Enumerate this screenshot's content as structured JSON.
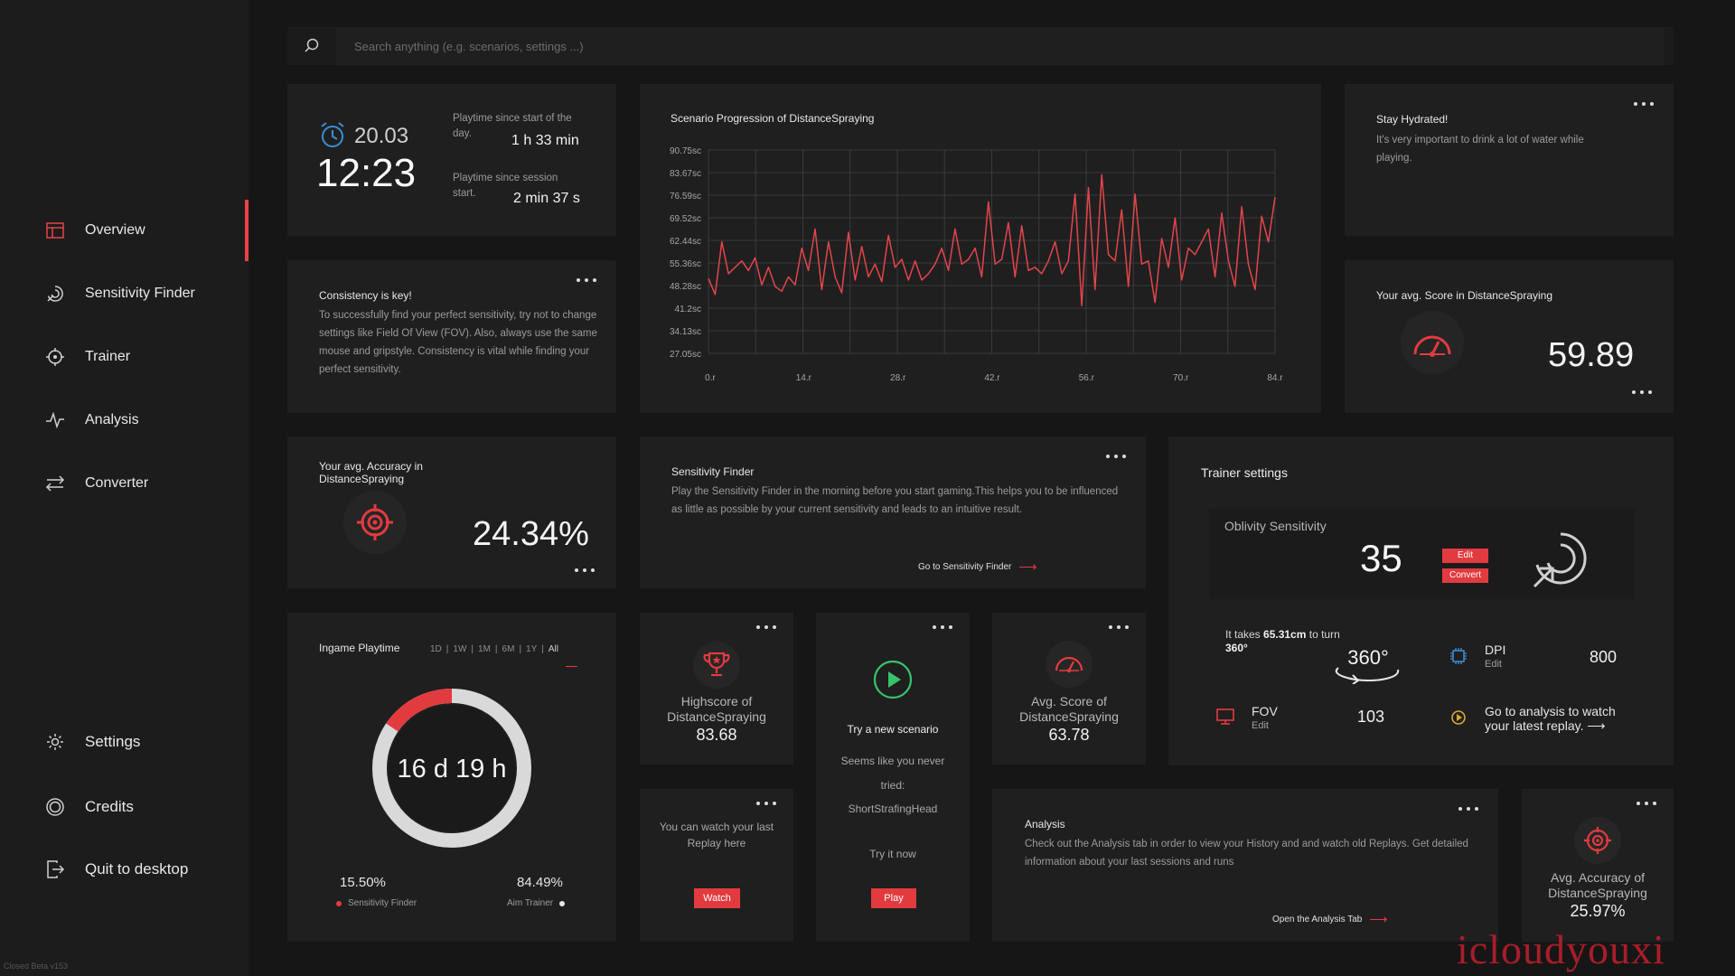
{
  "search": {
    "placeholder": "Search anything (e.g. scenarios, settings ...)"
  },
  "nav": {
    "overview": "Overview",
    "sensitivity_finder": "Sensitivity Finder",
    "trainer": "Trainer",
    "analysis": "Analysis",
    "converter": "Converter",
    "settings": "Settings",
    "credits": "Credits",
    "quit": "Quit to desktop"
  },
  "version": "Closed Beta v153",
  "clock": {
    "date": "20.03",
    "time": "12:23",
    "day_label": "Playtime since start of the day.",
    "day_value": "1 h 33 min",
    "session_label": "Playtime since session start.",
    "session_value": "2 min 37 s"
  },
  "progression": {
    "title": "Scenario Progression of DistanceSpraying"
  },
  "chart_data": {
    "type": "line",
    "title": "Scenario Progression of DistanceSpraying",
    "xlabel": "",
    "ylabel": "",
    "x_tick_labels": [
      "0.r",
      "14.r",
      "28.r",
      "42.r",
      "56.r",
      "70.r",
      "84.r"
    ],
    "y_tick_labels": [
      "90.75sc",
      "83.67sc",
      "76.59sc",
      "69.52sc",
      "62.44sc",
      "55.36sc",
      "48.28sc",
      "41.2sc",
      "34.13sc",
      "27.05sc"
    ],
    "ylim": [
      27.05,
      90.75
    ],
    "xlim": [
      0,
      84
    ],
    "grid": true,
    "color": "#e2454b",
    "series": [
      {
        "values": [
          50.5,
          45.5,
          62,
          52,
          54,
          56,
          53,
          57,
          48.5,
          54,
          48,
          46.5,
          51,
          48.5,
          60,
          53,
          66,
          47,
          62,
          51,
          46,
          65,
          50,
          60.5,
          51,
          55,
          49.5,
          64,
          54,
          56.5,
          50,
          56,
          50,
          52,
          55,
          60,
          53,
          66,
          55,
          56.5,
          60,
          51,
          74.5,
          55,
          56.5,
          68,
          51,
          67,
          53,
          54,
          52,
          56,
          62,
          52,
          56,
          77,
          42,
          79,
          47,
          83,
          58,
          56,
          72,
          48,
          77,
          55,
          56,
          43,
          63,
          54,
          69.5,
          50,
          60,
          58,
          62,
          66,
          51,
          71,
          56,
          48,
          73,
          55,
          47,
          70,
          62,
          76
        ]
      }
    ]
  },
  "hydrated": {
    "title": "Stay Hydrated!",
    "body": "It's very important to drink a lot of water while playing."
  },
  "consistency": {
    "title": "Consistency is key!",
    "body": "To successfully find your perfect sensitivity, try not to change settings like Field Of View (FOV). Also, always use the same mouse and gripstyle. Consistency is vital while finding your perfect sensitivity."
  },
  "avg_score": {
    "label": "Your avg. Score in DistanceSpraying",
    "value": "59.89"
  },
  "avg_accuracy": {
    "label": "Your avg. Accuracy in DistanceSpraying",
    "value": "24.34%"
  },
  "sens_finder_card": {
    "title": "Sensitivity Finder",
    "body": "Play the Sensitivity Finder in the morning before you start gaming.This helps you to be influenced as little as possible by your current sensitivity and leads to an intuitive result.",
    "link": "Go to Sensitivity Finder"
  },
  "trainer_settings": {
    "title": "Trainer settings",
    "sens_label": "Oblivity Sensitivity",
    "sens_value": "35",
    "edit_label": "Edit",
    "convert_label": "Convert",
    "turn_prefix": "It takes",
    "turn_distance": "65.31cm",
    "turn_middle": "to turn",
    "turn_degrees": "360°",
    "dial_label": "360°",
    "dpi_label": "DPI",
    "dpi_edit": "Edit",
    "dpi_value": "800",
    "fov_label": "FOV",
    "fov_edit": "Edit",
    "fov_value": "103",
    "replay_text": "Go to analysis to watch your latest replay."
  },
  "playtime": {
    "title": "Ingame Playtime",
    "ranges": [
      "1D",
      "1W",
      "1M",
      "6M",
      "1Y",
      "All"
    ],
    "selected_range": "All",
    "total": "16 d 19 h",
    "sens_pct": "15.50%",
    "sens_label": "Sensitivity Finder",
    "aim_pct": "84.49%",
    "aim_label": "Aim Trainer",
    "sens_fraction": 0.155,
    "accent": "#e23b3f"
  },
  "highscore": {
    "label": "Highscore of DistanceSpraying",
    "value": "83.68"
  },
  "new_scenario": {
    "title": "Try a new scenario",
    "line1": "Seems like you never",
    "line2": "tried:",
    "scenario": "ShortStrafingHead",
    "cta": "Try it now",
    "button": "Play"
  },
  "avg_score_small": {
    "label": "Avg. Score of DistanceSpraying",
    "value": "63.78"
  },
  "replay": {
    "text": "You can watch your last Replay here",
    "button": "Watch"
  },
  "analysis_card": {
    "title": "Analysis",
    "body": "Check out the Analysis tab in order to view your History and and watch old Replays. Get detailed information about your last sessions and runs",
    "link": "Open the Analysis Tab"
  },
  "avg_accuracy_small": {
    "label": "Avg. Accuracy of DistanceSpraying",
    "value": "25.97%"
  },
  "watermark": "icloudyouxi"
}
